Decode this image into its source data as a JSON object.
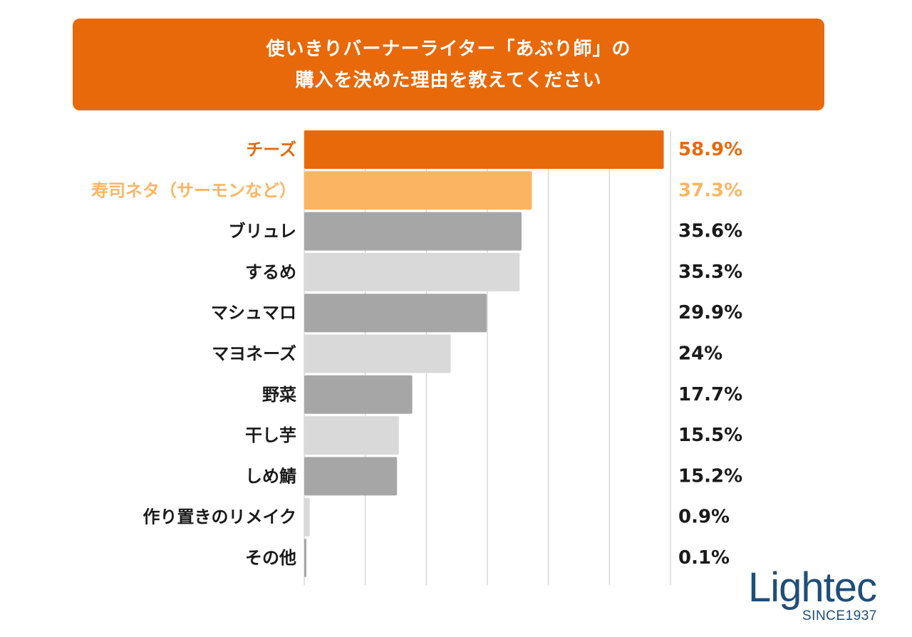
{
  "title": {
    "line1": "使いきりバーナーライター「あぶり師」の",
    "line2": "購入を決めた理由を教えてください"
  },
  "chart_data": {
    "type": "bar",
    "orientation": "horizontal",
    "categories": [
      "チーズ",
      "寿司ネタ（サーモンなど）",
      "ブリュレ",
      "するめ",
      "マシュマロ",
      "マヨネーズ",
      "野菜",
      "干し芋",
      "しめ鯖",
      "作り置きのリメイク",
      "その他"
    ],
    "values": [
      58.9,
      37.3,
      35.6,
      35.3,
      29.9,
      24,
      17.7,
      15.5,
      15.2,
      0.9,
      0.1
    ],
    "value_labels": [
      "58.9%",
      "37.3%",
      "35.6%",
      "35.3%",
      "29.9%",
      "24%",
      "17.7%",
      "15.5%",
      "15.2%",
      "0.9%",
      "0.1%"
    ],
    "xlim": [
      0,
      60
    ],
    "grid": true,
    "colors": {
      "highlight1": "#e8690a",
      "highlight2": "#fbb562",
      "dark": "#a6a6a6",
      "light": "#d9d9d9",
      "grid": "#d0d0d0",
      "text": "#1a1a1a"
    },
    "bar_color_keys": [
      "highlight1",
      "highlight2",
      "dark",
      "light",
      "dark",
      "light",
      "dark",
      "light",
      "dark",
      "light",
      "dark"
    ],
    "label_color_keys": [
      "highlight1",
      "highlight2",
      "text",
      "text",
      "text",
      "text",
      "text",
      "text",
      "text",
      "text",
      "text"
    ]
  },
  "logo": {
    "main": "Lightec",
    "sub": "SINCE1937"
  }
}
